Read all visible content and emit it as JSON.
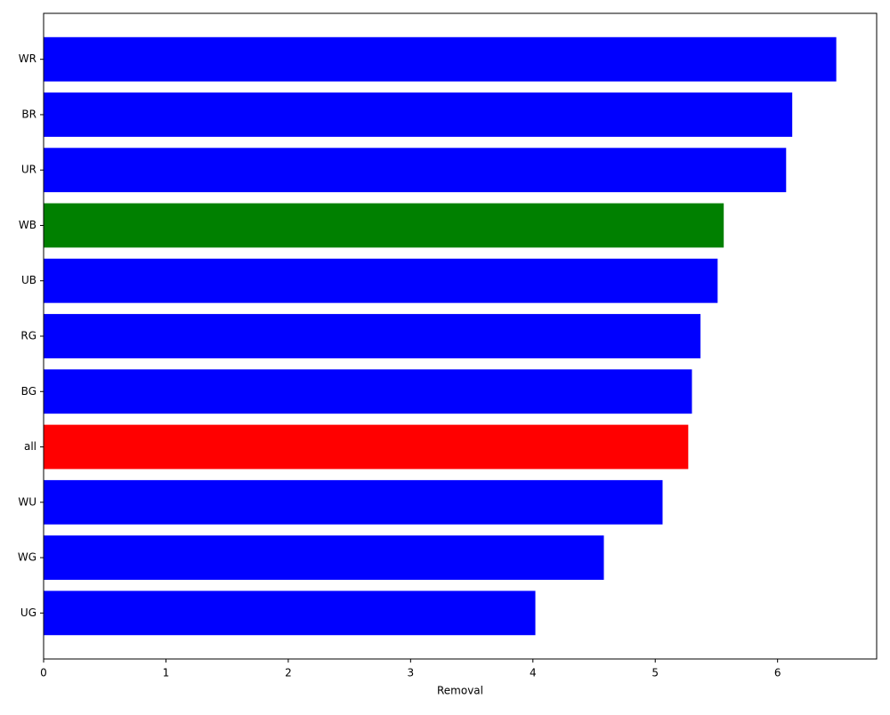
{
  "chart_data": {
    "type": "barh",
    "xlabel": "Removal",
    "categories": [
      "WR",
      "BR",
      "UR",
      "WB",
      "UB",
      "RG",
      "BG",
      "all",
      "WU",
      "WG",
      "UG"
    ],
    "values": [
      6.48,
      6.12,
      6.07,
      5.56,
      5.51,
      5.37,
      5.3,
      5.27,
      5.06,
      4.58,
      4.02
    ],
    "colors": [
      "#0000ff",
      "#0000ff",
      "#0000ff",
      "#008000",
      "#0000ff",
      "#0000ff",
      "#0000ff",
      "#ff0000",
      "#0000ff",
      "#0000ff",
      "#0000ff"
    ],
    "xlim": [
      0,
      6.81
    ],
    "xticks": [
      0,
      1,
      2,
      3,
      4,
      5,
      6
    ]
  }
}
